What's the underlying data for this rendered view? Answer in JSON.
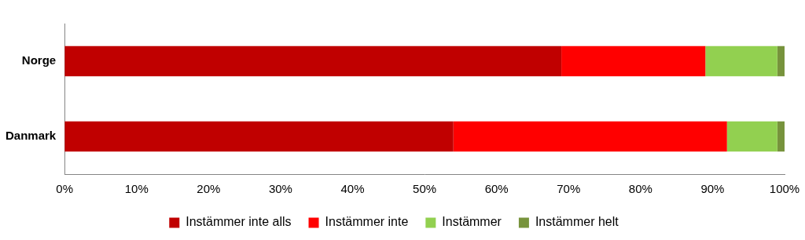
{
  "chart_data": {
    "type": "bar",
    "orientation": "horizontal",
    "stacked": true,
    "grid": false,
    "legend": "bottom",
    "categories": [
      "Norge",
      "Danmark"
    ],
    "series": [
      {
        "name": "Instämmer inte alls",
        "color": "#c00000",
        "values": [
          69,
          54
        ]
      },
      {
        "name": "Instämmer inte",
        "color": "#ff0000",
        "values": [
          20,
          38
        ]
      },
      {
        "name": "Instämmer",
        "color": "#92d050",
        "values": [
          10,
          7
        ]
      },
      {
        "name": "Instämmer helt",
        "color": "#77933c",
        "values": [
          1,
          1
        ]
      }
    ],
    "xlim": [
      0,
      100
    ],
    "xticks": [
      {
        "value": 0,
        "label": "0%"
      },
      {
        "value": 10,
        "label": "10%"
      },
      {
        "value": 20,
        "label": "20%"
      },
      {
        "value": 30,
        "label": "30%"
      },
      {
        "value": 40,
        "label": "40%"
      },
      {
        "value": 50,
        "label": "50%"
      },
      {
        "value": 60,
        "label": "60%"
      },
      {
        "value": 70,
        "label": "70%"
      },
      {
        "value": 80,
        "label": "80%"
      },
      {
        "value": 90,
        "label": "90%"
      },
      {
        "value": 100,
        "label": "100%"
      }
    ]
  }
}
